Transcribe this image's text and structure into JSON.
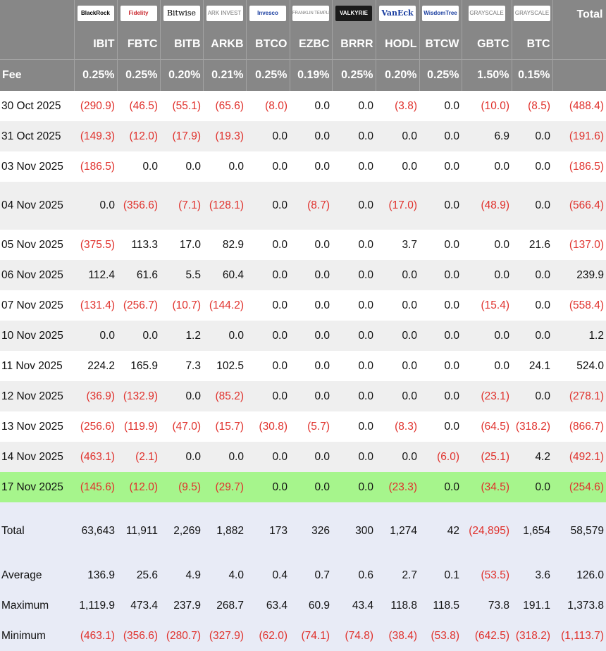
{
  "logos": [
    {
      "name": "blackrock-logo",
      "text": "BlackRock"
    },
    {
      "name": "fidelity-logo",
      "text": "Fidelity"
    },
    {
      "name": "bitwise-logo",
      "text": "Bitwise"
    },
    {
      "name": "ark-invest-logo",
      "text": "ARK INVEST"
    },
    {
      "name": "invesco-logo",
      "text": "Invesco"
    },
    {
      "name": "franklin-templeton-logo",
      "text": "FRANKLIN TEMPLETON"
    },
    {
      "name": "valkyrie-logo",
      "text": "VALKYRIE"
    },
    {
      "name": "vaneck-logo",
      "text": "VanEck"
    },
    {
      "name": "wisdomtree-logo",
      "text": "WisdomTree"
    },
    {
      "name": "grayscale-logo",
      "text": "GRAYSCALE"
    },
    {
      "name": "grayscale-logo-2",
      "text": "GRAYSCALE"
    }
  ],
  "header": {
    "total_label": "Total",
    "fee_label": "Fee",
    "tickers": [
      "IBIT",
      "FBTC",
      "BITB",
      "ARKB",
      "BTCO",
      "EZBC",
      "BRRR",
      "HODL",
      "BTCW",
      "GBTC",
      "BTC"
    ],
    "fees": [
      "0.25%",
      "0.25%",
      "0.20%",
      "0.21%",
      "0.25%",
      "0.19%",
      "0.25%",
      "0.20%",
      "0.25%",
      "1.50%",
      "0.15%"
    ]
  },
  "rows": [
    {
      "date": "30 Oct 2025",
      "vals": [
        "(290.9)",
        "(46.5)",
        "(55.1)",
        "(65.6)",
        "(8.0)",
        "0.0",
        "0.0",
        "(3.8)",
        "0.0",
        "(10.0)",
        "(8.5)",
        "(488.4)"
      ]
    },
    {
      "date": "31 Oct 2025",
      "vals": [
        "(149.3)",
        "(12.0)",
        "(17.9)",
        "(19.3)",
        "0.0",
        "0.0",
        "0.0",
        "0.0",
        "0.0",
        "6.9",
        "0.0",
        "(191.6)"
      ]
    },
    {
      "date": "03 Nov 2025",
      "vals": [
        "(186.5)",
        "0.0",
        "0.0",
        "0.0",
        "0.0",
        "0.0",
        "0.0",
        "0.0",
        "0.0",
        "0.0",
        "0.0",
        "(186.5)"
      ]
    },
    {
      "date": "04 Nov 2025",
      "vals": [
        "0.0",
        "(356.6)",
        "(7.1)",
        "(128.1)",
        "0.0",
        "(8.7)",
        "0.0",
        "(17.0)",
        "0.0",
        "(48.9)",
        "0.0",
        "(566.4)"
      ]
    },
    {
      "date": "05 Nov 2025",
      "vals": [
        "(375.5)",
        "113.3",
        "17.0",
        "82.9",
        "0.0",
        "0.0",
        "0.0",
        "3.7",
        "0.0",
        "0.0",
        "21.6",
        "(137.0)"
      ]
    },
    {
      "date": "06 Nov 2025",
      "vals": [
        "112.4",
        "61.6",
        "5.5",
        "60.4",
        "0.0",
        "0.0",
        "0.0",
        "0.0",
        "0.0",
        "0.0",
        "0.0",
        "239.9"
      ]
    },
    {
      "date": "07 Nov 2025",
      "vals": [
        "(131.4)",
        "(256.7)",
        "(10.7)",
        "(144.2)",
        "0.0",
        "0.0",
        "0.0",
        "0.0",
        "0.0",
        "(15.4)",
        "0.0",
        "(558.4)"
      ]
    },
    {
      "date": "10 Nov 2025",
      "vals": [
        "0.0",
        "0.0",
        "1.2",
        "0.0",
        "0.0",
        "0.0",
        "0.0",
        "0.0",
        "0.0",
        "0.0",
        "0.0",
        "1.2"
      ]
    },
    {
      "date": "11 Nov 2025",
      "vals": [
        "224.2",
        "165.9",
        "7.3",
        "102.5",
        "0.0",
        "0.0",
        "0.0",
        "0.0",
        "0.0",
        "0.0",
        "24.1",
        "524.0"
      ]
    },
    {
      "date": "12 Nov 2025",
      "vals": [
        "(36.9)",
        "(132.9)",
        "0.0",
        "(85.2)",
        "0.0",
        "0.0",
        "0.0",
        "0.0",
        "0.0",
        "(23.1)",
        "0.0",
        "(278.1)"
      ]
    },
    {
      "date": "13 Nov 2025",
      "vals": [
        "(256.6)",
        "(119.9)",
        "(47.0)",
        "(15.7)",
        "(30.8)",
        "(5.7)",
        "0.0",
        "(8.3)",
        "0.0",
        "(64.5)",
        "(318.2)",
        "(866.7)"
      ]
    },
    {
      "date": "14 Nov 2025",
      "vals": [
        "(463.1)",
        "(2.1)",
        "0.0",
        "0.0",
        "0.0",
        "0.0",
        "0.0",
        "0.0",
        "(6.0)",
        "(25.1)",
        "4.2",
        "(492.1)"
      ]
    },
    {
      "date": "17 Nov 2025",
      "vals": [
        "(145.6)",
        "(12.0)",
        "(9.5)",
        "(29.7)",
        "0.0",
        "0.0",
        "0.0",
        "(23.3)",
        "0.0",
        "(34.5)",
        "0.0",
        "(254.6)"
      ]
    }
  ],
  "summary": [
    {
      "label": "Total",
      "vals": [
        "63,643",
        "11,911",
        "2,269",
        "1,882",
        "173",
        "326",
        "300",
        "1,274",
        "42",
        "(24,895)",
        "1,654",
        "58,579"
      ]
    },
    {
      "label": "Average",
      "vals": [
        "136.9",
        "25.6",
        "4.9",
        "4.0",
        "0.4",
        "0.7",
        "0.6",
        "2.7",
        "0.1",
        "(53.5)",
        "3.6",
        "126.0"
      ]
    },
    {
      "label": "Maximum",
      "vals": [
        "1,119.9",
        "473.4",
        "237.9",
        "268.7",
        "63.4",
        "60.9",
        "43.4",
        "118.8",
        "118.5",
        "73.8",
        "191.1",
        "1,373.8"
      ]
    },
    {
      "label": "Minimum",
      "vals": [
        "(463.1)",
        "(356.6)",
        "(280.7)",
        "(327.9)",
        "(62.0)",
        "(74.1)",
        "(74.8)",
        "(38.4)",
        "(53.8)",
        "(642.5)",
        "(318.2)",
        "(1,113.7)"
      ]
    }
  ],
  "colors": {
    "header_bg": "#878787",
    "negative": "#e0312c",
    "highlight": "#a6f58c",
    "summary_bg": "#e8ebf6",
    "alt_row": "#efefef"
  }
}
